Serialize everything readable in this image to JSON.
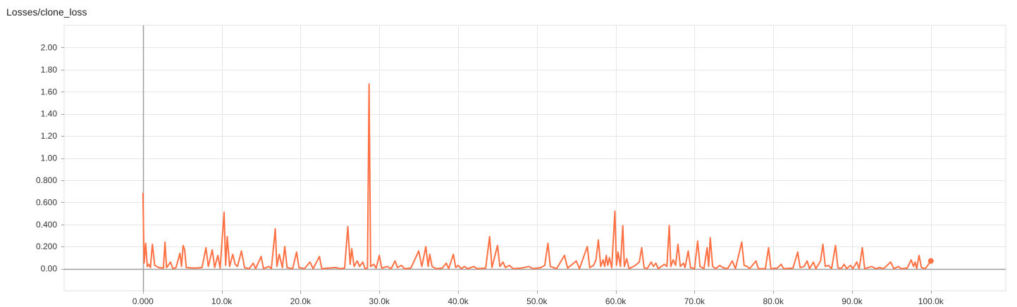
{
  "chart_data": {
    "type": "line",
    "title": "Losses/clone_loss",
    "xlabel": "",
    "ylabel": "",
    "xlim": [
      -10000,
      109500
    ],
    "ylim": [
      -0.2,
      2.2
    ],
    "x_ticks": [
      0,
      10000,
      20000,
      30000,
      40000,
      50000,
      60000,
      70000,
      80000,
      90000,
      100000
    ],
    "x_tick_labels": [
      "0.000",
      "10.0k",
      "20.0k",
      "30.0k",
      "40.0k",
      "50.0k",
      "60.0k",
      "70.0k",
      "80.0k",
      "90.0k",
      "100.0k"
    ],
    "y_ticks": [
      0,
      0.2,
      0.4,
      0.6,
      0.8,
      1.0,
      1.2,
      1.4,
      1.6,
      1.8,
      2.0
    ],
    "y_tick_labels": [
      "0.00",
      "0.200",
      "0.400",
      "0.600",
      "0.800",
      "1.00",
      "1.20",
      "1.40",
      "1.60",
      "1.80",
      "2.00"
    ],
    "grid": true,
    "legend": "none",
    "series": [
      {
        "color": "#ff7043",
        "last_point_marker": true,
        "points": [
          [
            0,
            0.68
          ],
          [
            150,
            0.05
          ],
          [
            350,
            0.23
          ],
          [
            550,
            0.02
          ],
          [
            750,
            0.04
          ],
          [
            950,
            0.01
          ],
          [
            1200,
            0.22
          ],
          [
            1500,
            0.03
          ],
          [
            2000,
            0.01
          ],
          [
            2600,
            0.005
          ],
          [
            2800,
            0.24
          ],
          [
            3000,
            0.01
          ],
          [
            3500,
            0.06
          ],
          [
            3800,
            0.0
          ],
          [
            4200,
            0.01
          ],
          [
            4700,
            0.14
          ],
          [
            4900,
            0.02
          ],
          [
            5100,
            0.21
          ],
          [
            5300,
            0.17
          ],
          [
            5500,
            0.01
          ],
          [
            6500,
            0.005
          ],
          [
            7500,
            0.01
          ],
          [
            8000,
            0.19
          ],
          [
            8300,
            0.02
          ],
          [
            8800,
            0.17
          ],
          [
            9100,
            0.01
          ],
          [
            9500,
            0.12
          ],
          [
            9800,
            0.005
          ],
          [
            10300,
            0.51
          ],
          [
            10500,
            0.03
          ],
          [
            10700,
            0.29
          ],
          [
            11000,
            0.02
          ],
          [
            11400,
            0.13
          ],
          [
            11700,
            0.04
          ],
          [
            12000,
            0.02
          ],
          [
            12500,
            0.16
          ],
          [
            12900,
            0.01
          ],
          [
            13500,
            0.0
          ],
          [
            14000,
            0.05
          ],
          [
            14300,
            0.0
          ],
          [
            15000,
            0.11
          ],
          [
            15300,
            0.0
          ],
          [
            16000,
            0.02
          ],
          [
            16300,
            0.0
          ],
          [
            16800,
            0.36
          ],
          [
            17000,
            0.02
          ],
          [
            17300,
            0.13
          ],
          [
            17700,
            0.01
          ],
          [
            18000,
            0.2
          ],
          [
            18300,
            0.01
          ],
          [
            19000,
            0.0
          ],
          [
            19500,
            0.15
          ],
          [
            19800,
            0.01
          ],
          [
            20500,
            0.0
          ],
          [
            21200,
            0.06
          ],
          [
            21600,
            0.0
          ],
          [
            22400,
            0.11
          ],
          [
            22700,
            0.0
          ],
          [
            23500,
            0.005
          ],
          [
            24500,
            0.01
          ],
          [
            25000,
            0.0
          ],
          [
            25600,
            0.005
          ],
          [
            26000,
            0.38
          ],
          [
            26300,
            0.04
          ],
          [
            26500,
            0.18
          ],
          [
            26800,
            0.02
          ],
          [
            27200,
            0.07
          ],
          [
            27500,
            0.02
          ],
          [
            27900,
            0.06
          ],
          [
            28200,
            0.0
          ],
          [
            28500,
            0.005
          ],
          [
            28700,
            1.67
          ],
          [
            28900,
            0.02
          ],
          [
            29300,
            0.04
          ],
          [
            29600,
            0.005
          ],
          [
            30000,
            0.12
          ],
          [
            30300,
            0.005
          ],
          [
            31000,
            0.02
          ],
          [
            31500,
            0.0
          ],
          [
            32000,
            0.07
          ],
          [
            32300,
            0.01
          ],
          [
            32800,
            0.03
          ],
          [
            33200,
            0.0
          ],
          [
            34000,
            0.005
          ],
          [
            35000,
            0.16
          ],
          [
            35400,
            0.02
          ],
          [
            35900,
            0.2
          ],
          [
            36200,
            0.02
          ],
          [
            36400,
            0.13
          ],
          [
            36700,
            0.02
          ],
          [
            37200,
            0.0
          ],
          [
            38000,
            0.005
          ],
          [
            38500,
            0.05
          ],
          [
            38800,
            0.0
          ],
          [
            39400,
            0.13
          ],
          [
            39700,
            0.01
          ],
          [
            40000,
            0.03
          ],
          [
            40400,
            0.0
          ],
          [
            40800,
            0.02
          ],
          [
            41200,
            0.0
          ],
          [
            42000,
            0.02
          ],
          [
            42400,
            0.0
          ],
          [
            43500,
            0.005
          ],
          [
            44000,
            0.29
          ],
          [
            44300,
            0.01
          ],
          [
            45000,
            0.21
          ],
          [
            45300,
            0.02
          ],
          [
            45700,
            0.06
          ],
          [
            46000,
            0.01
          ],
          [
            46500,
            0.03
          ],
          [
            47000,
            0.0
          ],
          [
            48000,
            0.005
          ],
          [
            49000,
            0.02
          ],
          [
            49500,
            0.0
          ],
          [
            50500,
            0.01
          ],
          [
            51000,
            0.03
          ],
          [
            51400,
            0.23
          ],
          [
            51700,
            0.02
          ],
          [
            52500,
            0.0
          ],
          [
            53500,
            0.12
          ],
          [
            53900,
            0.005
          ],
          [
            55000,
            0.07
          ],
          [
            55400,
            0.0
          ],
          [
            56400,
            0.2
          ],
          [
            56700,
            0.01
          ],
          [
            57200,
            0.03
          ],
          [
            57500,
            0.08
          ],
          [
            57800,
            0.26
          ],
          [
            58100,
            0.02
          ],
          [
            58400,
            0.08
          ],
          [
            58600,
            0.02
          ],
          [
            58800,
            0.12
          ],
          [
            59000,
            0.03
          ],
          [
            59200,
            0.1
          ],
          [
            59500,
            0.01
          ],
          [
            59900,
            0.52
          ],
          [
            60100,
            0.03
          ],
          [
            60300,
            0.15
          ],
          [
            60600,
            0.02
          ],
          [
            60900,
            0.39
          ],
          [
            61100,
            0.02
          ],
          [
            61400,
            0.09
          ],
          [
            61700,
            0.0
          ],
          [
            62500,
            0.03
          ],
          [
            63000,
            0.06
          ],
          [
            63300,
            0.19
          ],
          [
            63600,
            0.01
          ],
          [
            64000,
            0.0
          ],
          [
            64500,
            0.06
          ],
          [
            64800,
            0.02
          ],
          [
            65100,
            0.05
          ],
          [
            65400,
            0.0
          ],
          [
            66200,
            0.04
          ],
          [
            66500,
            0.02
          ],
          [
            66800,
            0.39
          ],
          [
            67000,
            0.02
          ],
          [
            67300,
            0.08
          ],
          [
            67600,
            0.03
          ],
          [
            67900,
            0.22
          ],
          [
            68200,
            0.02
          ],
          [
            68600,
            0.05
          ],
          [
            68800,
            0.01
          ],
          [
            69200,
            0.16
          ],
          [
            69500,
            0.01
          ],
          [
            70000,
            0.0
          ],
          [
            70400,
            0.25
          ],
          [
            70700,
            0.02
          ],
          [
            71200,
            0.0
          ],
          [
            71600,
            0.19
          ],
          [
            71800,
            0.02
          ],
          [
            72000,
            0.28
          ],
          [
            72300,
            0.02
          ],
          [
            72700,
            0.0
          ],
          [
            73200,
            0.03
          ],
          [
            73600,
            0.01
          ],
          [
            74200,
            0.0
          ],
          [
            74800,
            0.07
          ],
          [
            75200,
            0.0
          ],
          [
            76000,
            0.24
          ],
          [
            76300,
            0.03
          ],
          [
            76700,
            0.02
          ],
          [
            77000,
            0.0
          ],
          [
            77800,
            0.07
          ],
          [
            78100,
            0.0
          ],
          [
            79000,
            0.0
          ],
          [
            79400,
            0.19
          ],
          [
            79700,
            0.0
          ],
          [
            80500,
            0.005
          ],
          [
            81000,
            0.04
          ],
          [
            81300,
            0.0
          ],
          [
            82500,
            0.005
          ],
          [
            83100,
            0.15
          ],
          [
            83400,
            0.01
          ],
          [
            83900,
            0.02
          ],
          [
            84300,
            0.07
          ],
          [
            84600,
            0.0
          ],
          [
            85100,
            0.06
          ],
          [
            85400,
            0.0
          ],
          [
            86000,
            0.07
          ],
          [
            86300,
            0.22
          ],
          [
            86600,
            0.02
          ],
          [
            87000,
            0.03
          ],
          [
            87400,
            0.0
          ],
          [
            87900,
            0.21
          ],
          [
            88200,
            0.01
          ],
          [
            88600,
            0.0
          ],
          [
            89000,
            0.04
          ],
          [
            89300,
            0.0
          ],
          [
            89800,
            0.03
          ],
          [
            90100,
            0.0
          ],
          [
            90600,
            0.06
          ],
          [
            90900,
            0.0
          ],
          [
            91300,
            0.19
          ],
          [
            91600,
            0.0
          ],
          [
            92500,
            0.02
          ],
          [
            93000,
            0.0
          ],
          [
            93500,
            0.01
          ],
          [
            94000,
            0.0
          ],
          [
            94900,
            0.06
          ],
          [
            95300,
            0.0
          ],
          [
            95900,
            0.02
          ],
          [
            96200,
            0.0
          ],
          [
            97000,
            0.005
          ],
          [
            97500,
            0.08
          ],
          [
            97800,
            0.02
          ],
          [
            98000,
            0.06
          ],
          [
            98200,
            0.0
          ],
          [
            98500,
            0.12
          ],
          [
            98800,
            0.01
          ],
          [
            99300,
            0.0
          ],
          [
            100000,
            0.07
          ]
        ]
      }
    ]
  }
}
